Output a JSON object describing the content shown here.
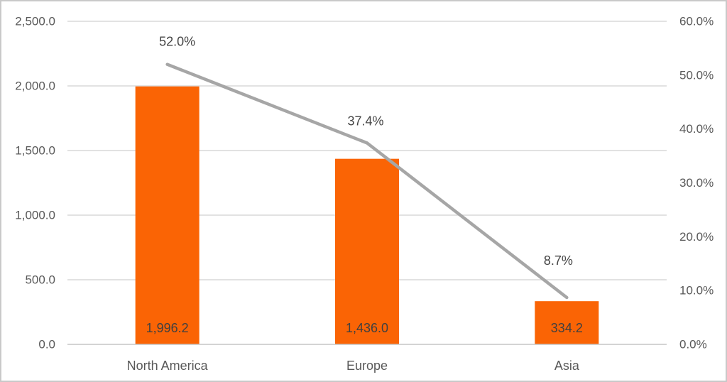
{
  "chart_data": {
    "type": "combo (bar + line)",
    "title": "",
    "legend": false,
    "grid": true,
    "categories": [
      "North America",
      "Europe",
      "Asia"
    ],
    "series": [
      {
        "type": "bar",
        "axis": "left",
        "values": [
          1996.2,
          1436.0,
          334.2
        ],
        "data_labels": [
          "1,996.2",
          "1,436.0",
          "334.2"
        ],
        "color": "#fa6405",
        "label_color": "#404040"
      },
      {
        "type": "line",
        "axis": "right",
        "values": [
          52.0,
          37.4,
          8.7
        ],
        "data_labels": [
          "52.0%",
          "37.4%",
          "8.7%"
        ],
        "color": "#a6a6a6",
        "label_color": "#444444"
      }
    ],
    "left_axis": {
      "min": 0,
      "max": 2500,
      "tick_step": 500,
      "tick_labels": [
        "0.0",
        "500.0",
        "1,000.0",
        "1,500.0",
        "2,000.0",
        "2,500.0"
      ],
      "label_color": "#595959"
    },
    "right_axis": {
      "min": 0,
      "max": 60,
      "tick_step": 10,
      "tick_labels": [
        "0.0%",
        "10.0%",
        "20.0%",
        "30.0%",
        "40.0%",
        "50.0%",
        "60.0%"
      ],
      "label_color": "#595959"
    },
    "category_label_color": "#595959",
    "colors": {
      "gridline": "#d9d9d9",
      "axis_line": "#c6c6c6",
      "border": "#c9c9c9",
      "background": "#ffffff"
    }
  }
}
